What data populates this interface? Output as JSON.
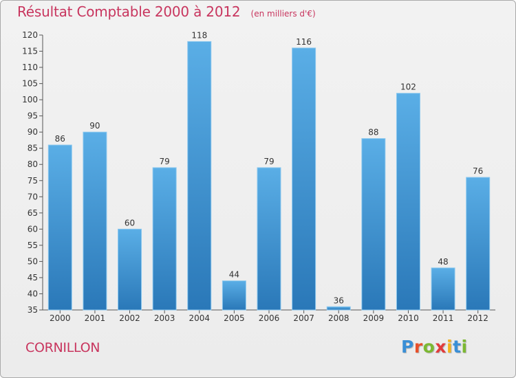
{
  "header": {
    "title": "Résultat Comptable 2000 à 2012",
    "subtitle": "(en milliers d'€)"
  },
  "footer": {
    "commune": "CORNILLON",
    "logo_letters": [
      "P",
      "r",
      "o",
      "x",
      "i",
      "t",
      "i"
    ],
    "logo_colors": [
      "#3a8fd6",
      "#e8502a",
      "#7cb832",
      "#e23b3b",
      "#f2b21f",
      "#3a8fd6",
      "#7cb832"
    ]
  },
  "chart_data": {
    "type": "bar",
    "title": "Résultat Comptable 2000 à 2012",
    "subtitle": "(en milliers d'€)",
    "categories": [
      "2000",
      "2001",
      "2002",
      "2003",
      "2004",
      "2005",
      "2006",
      "2007",
      "2008",
      "2009",
      "2010",
      "2011",
      "2012"
    ],
    "values": [
      86,
      90,
      60,
      79,
      118,
      44,
      79,
      116,
      36,
      88,
      102,
      48,
      76
    ],
    "ylim": [
      35,
      120
    ],
    "yticks": [
      "35",
      "40",
      "45",
      "50",
      "55",
      "60",
      "65",
      "70",
      "75",
      "80",
      "85",
      "90",
      "95",
      "100",
      "105",
      "110",
      "115",
      "120"
    ],
    "grid": false,
    "bar_color_top": "#5aaee6",
    "bar_color_bottom": "#2a78b8"
  }
}
